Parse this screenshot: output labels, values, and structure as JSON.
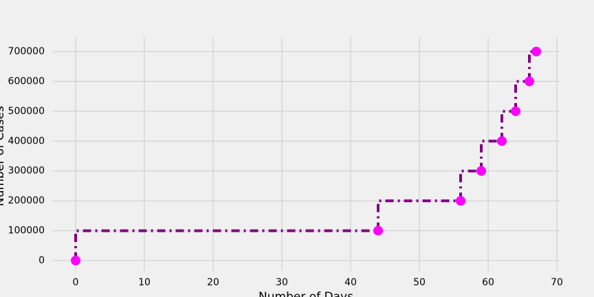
{
  "chart_data": {
    "type": "step",
    "step": "pre",
    "xlabel": "Number of Days",
    "ylabel": "Number of Cases",
    "x": [
      0,
      44,
      56,
      59,
      62,
      64,
      66,
      67
    ],
    "values": [
      0,
      100000,
      200000,
      300000,
      400000,
      500000,
      600000,
      700000
    ],
    "color": "#800080",
    "marker_color": "#ff00ff",
    "xlim": [
      -3.35,
      70.35
    ],
    "xticks": [
      0,
      10,
      20,
      30,
      40,
      50,
      60,
      70
    ],
    "ylim": [
      -35000,
      735000
    ],
    "yticks": [
      0,
      100000,
      200000,
      300000,
      400000,
      500000,
      600000,
      700000
    ],
    "grid": true
  }
}
